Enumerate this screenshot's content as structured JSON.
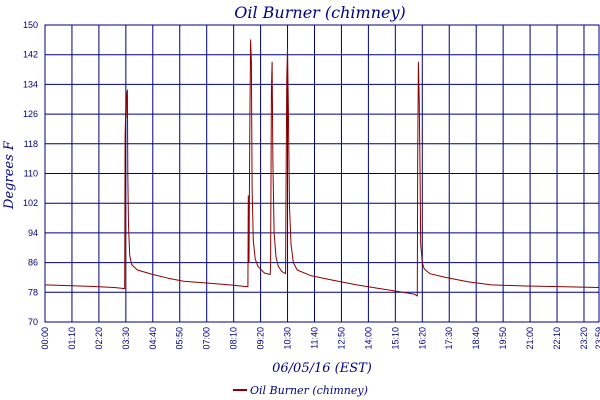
{
  "chart_data": {
    "type": "line",
    "title": "Oil Burner (chimney)",
    "xlabel": "06/05/16 (EST)",
    "ylabel": "Degrees F",
    "ylim": [
      70,
      150
    ],
    "yticks": [
      70,
      78,
      86,
      94,
      102,
      110,
      118,
      126,
      134,
      142,
      150
    ],
    "xlim_minutes": [
      0,
      1439
    ],
    "xtick_labels": [
      "00:00",
      "01:10",
      "02:20",
      "03:30",
      "04:40",
      "05:50",
      "07:00",
      "08:10",
      "09:20",
      "10:30",
      "11:40",
      "12:50",
      "14:00",
      "15:10",
      "16:20",
      "17:30",
      "18:40",
      "19:50",
      "21:00",
      "22:10",
      "23:20",
      "23:59"
    ],
    "grid": true,
    "legend_position": "bottom-center",
    "line_color": "#8b0000",
    "grid_color": "#000080",
    "series": [
      {
        "name": "Oil Burner (chimney)",
        "points": [
          [
            0,
            80
          ],
          [
            60,
            79.8
          ],
          [
            120,
            79.6
          ],
          [
            180,
            79.3
          ],
          [
            207,
            79
          ],
          [
            208,
            120
          ],
          [
            210,
            128
          ],
          [
            211,
            125
          ],
          [
            212,
            131
          ],
          [
            214,
            132.5
          ],
          [
            215,
            110
          ],
          [
            217,
            96
          ],
          [
            220,
            88
          ],
          [
            225,
            85.5
          ],
          [
            240,
            84
          ],
          [
            280,
            82.8
          ],
          [
            320,
            81.8
          ],
          [
            360,
            81
          ],
          [
            420,
            80.5
          ],
          [
            480,
            80
          ],
          [
            527,
            79.5
          ],
          [
            528,
            104
          ],
          [
            530,
            86
          ],
          [
            532,
            122
          ],
          [
            534,
            146
          ],
          [
            536,
            140
          ],
          [
            538,
            106
          ],
          [
            541,
            92
          ],
          [
            546,
            87
          ],
          [
            553,
            85
          ],
          [
            570,
            83.2
          ],
          [
            585,
            82.8
          ],
          [
            586,
            86
          ],
          [
            588,
            132
          ],
          [
            590,
            140
          ],
          [
            592,
            113
          ],
          [
            595,
            94
          ],
          [
            600,
            87.5
          ],
          [
            606,
            85
          ],
          [
            615,
            83.6
          ],
          [
            625,
            83
          ],
          [
            626,
            105
          ],
          [
            628,
            136
          ],
          [
            630,
            143.5
          ],
          [
            632,
            129
          ],
          [
            635,
            101
          ],
          [
            639,
            91
          ],
          [
            645,
            86
          ],
          [
            655,
            84
          ],
          [
            690,
            82.5
          ],
          [
            750,
            81.2
          ],
          [
            810,
            80
          ],
          [
            870,
            79
          ],
          [
            930,
            78
          ],
          [
            960,
            77.5
          ],
          [
            967,
            77
          ],
          [
            968,
            115
          ],
          [
            970,
            140
          ],
          [
            972,
            130
          ],
          [
            974,
            112
          ],
          [
            976,
            91
          ],
          [
            978,
            88.5
          ],
          [
            980,
            86
          ],
          [
            985,
            84.3
          ],
          [
            1000,
            83
          ],
          [
            1040,
            82
          ],
          [
            1100,
            80.8
          ],
          [
            1160,
            80
          ],
          [
            1250,
            79.7
          ],
          [
            1350,
            79.5
          ],
          [
            1439,
            79.3
          ]
        ]
      }
    ]
  }
}
